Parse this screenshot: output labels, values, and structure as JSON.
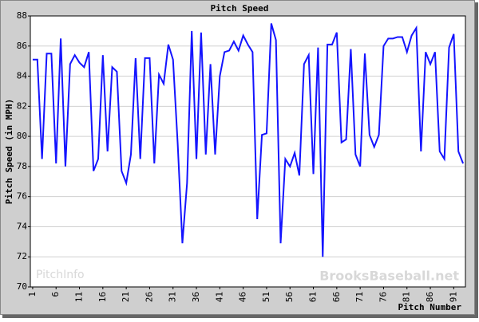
{
  "chart_data": {
    "type": "line",
    "title": "Pitch Speed",
    "x_label": "Pitch Number",
    "y_label": "Pitch Speed (in MPH)",
    "watermarks": [
      "PitchInfo",
      "BrooksBaseball.net"
    ],
    "x": [
      1,
      2,
      3,
      4,
      5,
      6,
      7,
      8,
      9,
      10,
      11,
      12,
      13,
      14,
      15,
      16,
      17,
      18,
      19,
      20,
      21,
      22,
      23,
      24,
      25,
      26,
      27,
      28,
      29,
      30,
      31,
      32,
      33,
      34,
      35,
      36,
      37,
      38,
      39,
      40,
      41,
      42,
      43,
      44,
      45,
      46,
      47,
      48,
      49,
      50,
      51,
      52,
      53,
      54,
      55,
      56,
      57,
      58,
      59,
      60,
      61,
      62,
      63,
      64,
      65,
      66,
      67,
      68,
      69,
      70,
      71,
      72,
      73,
      74,
      75,
      76,
      77,
      78,
      79,
      80,
      81,
      82,
      83,
      84,
      85,
      86,
      87,
      88,
      89,
      90,
      91,
      92,
      93
    ],
    "series": [
      {
        "name": "Pitch Speed",
        "color": "#1414ff",
        "values": [
          85.1,
          85.1,
          78.5,
          85.5,
          85.5,
          78.2,
          86.5,
          78,
          84.8,
          85.4,
          84.9,
          84.6,
          85.6,
          77.7,
          78.5,
          85.4,
          79,
          84.6,
          84.3,
          77.7,
          76.9,
          78.8,
          85.2,
          78.5,
          85.2,
          85.2,
          78.2,
          84.1,
          83.5,
          86.1,
          85.1,
          79.5,
          72.9,
          76.9,
          87,
          78.5,
          86.9,
          78.8,
          84.8,
          78.8,
          84,
          85.6,
          85.7,
          86.3,
          85.7,
          86.7,
          86.1,
          85.6,
          74.5,
          80.1,
          80.2,
          87.5,
          86.4,
          72.9,
          78.5,
          78,
          78.9,
          77.4,
          84.8,
          85.4,
          77.5,
          85.9,
          72,
          86.1,
          86.1,
          86.9,
          79.6,
          79.8,
          85.8,
          78.8,
          78,
          85.5,
          80.1,
          79.3,
          80.1,
          86,
          86.5,
          86.5,
          86.6,
          86.6,
          85.6,
          86.7,
          87.2,
          79,
          85.6,
          84.8,
          85.6,
          79,
          78.5,
          85.9,
          86.8,
          79,
          78.2
        ]
      }
    ],
    "xlim": [
      0.5,
      93.5
    ],
    "xticks": [
      1,
      6,
      11,
      16,
      21,
      26,
      31,
      36,
      41,
      46,
      51,
      56,
      61,
      66,
      71,
      76,
      81,
      86,
      91
    ],
    "ylim": [
      70,
      88
    ],
    "yticks": [
      70,
      72,
      74,
      76,
      78,
      80,
      82,
      84,
      86,
      88
    ],
    "grid": true
  }
}
